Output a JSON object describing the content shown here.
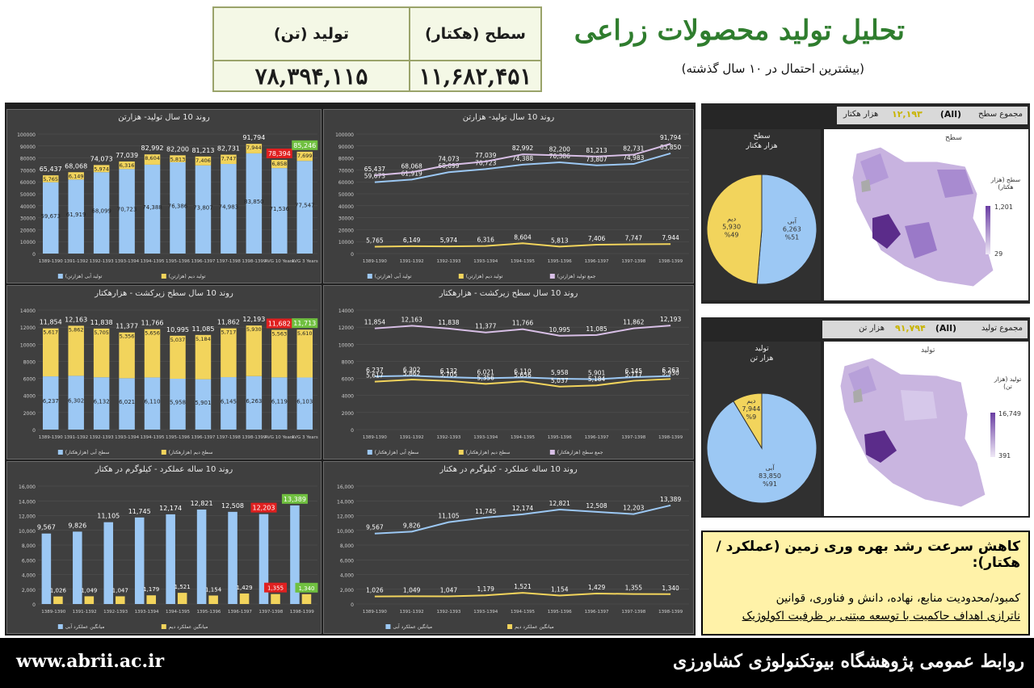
{
  "header": {
    "title": "تحلیل تولید محصولات زراعی",
    "subtitle": "(بیشترین احتمال در ۱۰ سال گذشته)",
    "area_label": "سطح (هکتار)",
    "area_value": "۱۱,۶۸۲,۴۵۱",
    "prod_label": "تولید (تن)",
    "prod_value": "۷۸,۳۹۴,۱۱۵"
  },
  "colors": {
    "irrigated": "#9cc8f4",
    "rainfed": "#f2d45c",
    "total": "#d8bfe6",
    "red_badge": "#e02020",
    "green_badge": "#70c040",
    "background": "#3f3f3f"
  },
  "chart_data": [
    {
      "id": "prod-bars",
      "type": "bar",
      "title": "روند 10 سال تولید- هزارتن",
      "categories": [
        "1389-1390",
        "1391-1392",
        "1392-1393",
        "1393-1394",
        "1394-1395",
        "1395-1396",
        "1396-1397",
        "1397-1398",
        "1398-1399",
        "AVG 10 Years",
        "AVG 3 Years"
      ],
      "ylim": [
        0,
        100000
      ],
      "yticks": [
        "0",
        "10000",
        "20000",
        "30000",
        "40000",
        "50000",
        "60000",
        "70000",
        "80000",
        "90000",
        "100000"
      ],
      "series": [
        {
          "name": "تولید آبی (هزارتن)",
          "values": [
            59673,
            61919,
            68099,
            70723,
            74388,
            76386,
            73807,
            74983,
            83850,
            71536,
            77547
          ],
          "labels": [
            "59,673",
            "61,919",
            "68,099",
            "70,723",
            "74,388",
            "76,386",
            "73,807",
            "74,983",
            "83,850",
            "71,536",
            "77,547"
          ]
        },
        {
          "name": "تولید دیم (هزارتن)",
          "values": [
            5765,
            6149,
            5974,
            6316,
            8604,
            5813,
            7406,
            7747,
            7944,
            6858,
            7699
          ],
          "labels": [
            "5,765",
            "6,149",
            "5,974",
            "6,316",
            "8,604",
            "5,813",
            "7,406",
            "7,747",
            "7,944",
            "6,858",
            "7,699"
          ]
        }
      ],
      "totals": [
        "65,437",
        "68,068",
        "74,073",
        "77,039",
        "82,992",
        "82,200",
        "81,213",
        "82,731",
        "91,794",
        "78,394",
        "85,246"
      ]
    },
    {
      "id": "prod-lines",
      "type": "line",
      "title": "روند 10 سال تولید- هزارتن",
      "categories": [
        "1389-1390",
        "1391-1392",
        "1392-1393",
        "1393-1394",
        "1394-1395",
        "1395-1396",
        "1396-1397",
        "1397-1398",
        "1398-1399"
      ],
      "ylim": [
        0,
        100000
      ],
      "yticks": [
        "0",
        "10000",
        "20000",
        "30000",
        "40000",
        "50000",
        "60000",
        "70000",
        "80000",
        "90000",
        "100000"
      ],
      "series": [
        {
          "name": "تولید آبی (هزارتن)",
          "values": [
            59673,
            61919,
            68099,
            70723,
            74388,
            76386,
            73807,
            74983,
            83850
          ],
          "labels": [
            "59,673",
            "61,919",
            "68,099",
            "70,723",
            "74,388",
            "76,386",
            "73,807",
            "74,983",
            "83,850"
          ]
        },
        {
          "name": "تولید دیم (هزارتن)",
          "values": [
            5765,
            6149,
            5974,
            6316,
            8604,
            5813,
            7406,
            7747,
            7944
          ],
          "labels": [
            "5,765",
            "6,149",
            "5,974",
            "6,316",
            "8,604",
            "5,813",
            "7,406",
            "7,747",
            "7,944"
          ]
        },
        {
          "name": "جمع تولید (هزارتن)",
          "values": [
            65437,
            68068,
            74073,
            77039,
            82992,
            82200,
            81213,
            82731,
            91794
          ],
          "labels": [
            "65,437",
            "68,068",
            "74,073",
            "77,039",
            "82,992",
            "82,200",
            "81,213",
            "82,731",
            "91,794"
          ]
        }
      ]
    },
    {
      "id": "area-bars",
      "type": "bar",
      "title": "روند 10 سال سطح زیرکشت - هزارهکتار",
      "categories": [
        "1389-1390",
        "1391-1392",
        "1392-1393",
        "1393-1394",
        "1394-1395",
        "1395-1396",
        "1396-1397",
        "1397-1398",
        "1398-1399",
        "AVG 10 Years",
        "AVG 3 Years"
      ],
      "ylim": [
        0,
        14000
      ],
      "yticks": [
        "0",
        "2000",
        "4000",
        "6000",
        "8000",
        "10000",
        "12000",
        "14000"
      ],
      "series": [
        {
          "name": "سطح آبی (هزارهکتار)",
          "values": [
            6237,
            6302,
            6132,
            6021,
            6110,
            5958,
            5901,
            6145,
            6263,
            6119,
            6103
          ],
          "labels": [
            "6,237",
            "6,302",
            "6,132",
            "6,021",
            "6,110",
            "5,958",
            "5,901",
            "6,145",
            "6,263",
            "6,119",
            "6,103"
          ]
        },
        {
          "name": "سطح دیم (هزارهکتار)",
          "values": [
            5617,
            5862,
            5705,
            5356,
            5656,
            5037,
            5184,
            5717,
            5930,
            5563,
            5610
          ],
          "labels": [
            "5,617",
            "5,862",
            "5,705",
            "5,356",
            "5,656",
            "5,037",
            "5,184",
            "5,717",
            "5,930",
            "5,563",
            "5,610"
          ]
        }
      ],
      "totals": [
        "11,854",
        "12,163",
        "11,838",
        "11,377",
        "11,766",
        "10,995",
        "11,085",
        "11,862",
        "12,193",
        "11,682",
        "11,713"
      ]
    },
    {
      "id": "area-lines",
      "type": "line",
      "title": "روند 10 سال سطح زیرکشت - هزارهکتار",
      "categories": [
        "1389-1390",
        "1391-1392",
        "1392-1393",
        "1393-1394",
        "1394-1395",
        "1395-1396",
        "1396-1397",
        "1397-1398",
        "1398-1399"
      ],
      "ylim": [
        0,
        14000
      ],
      "yticks": [
        "0",
        "2000",
        "4000",
        "6000",
        "8000",
        "10000",
        "12000",
        "14000"
      ],
      "series": [
        {
          "name": "سطح آبی (هزارهکتار)",
          "values": [
            6237,
            6302,
            6132,
            6021,
            6110,
            5958,
            5901,
            6145,
            6263
          ],
          "labels": [
            "6,237",
            "6,302",
            "6,132",
            "6,021",
            "6,110",
            "5,958",
            "5,901",
            "6,145",
            "6,263"
          ]
        },
        {
          "name": "سطح دیم (هزارهکتار)",
          "values": [
            5617,
            5862,
            5705,
            5356,
            5656,
            5037,
            5184,
            5717,
            5930
          ],
          "labels": [
            "5,617",
            "5,862",
            "5,705",
            "5,356",
            "5,656",
            "5,037",
            "5,184",
            "5,717",
            "5,930"
          ]
        },
        {
          "name": "جمع سطح (هزارهکتار)",
          "values": [
            11854,
            12163,
            11838,
            11377,
            11766,
            10995,
            11085,
            11862,
            12193
          ],
          "labels": [
            "11,854",
            "12,163",
            "11,838",
            "11,377",
            "11,766",
            "10,995",
            "11,085",
            "11,862",
            "12,193"
          ]
        }
      ]
    },
    {
      "id": "yield-bars",
      "type": "bar",
      "title": "روند 10 ساله عملکرد - کیلوگرم در هکتار",
      "categories": [
        "1389-1390",
        "1391-1392",
        "1392-1393",
        "1393-1394",
        "1394-1395",
        "1395-1396",
        "1396-1397",
        "1397-1398",
        "1398-1399"
      ],
      "ylim": [
        0,
        16000
      ],
      "yticks": [
        "0",
        "2,000",
        "4,000",
        "6,000",
        "8,000",
        "10,000",
        "12,000",
        "14,000",
        "16,000"
      ],
      "series": [
        {
          "name": "میانگین عملکرد آبی",
          "values": [
            9567,
            9826,
            11105,
            11745,
            12174,
            12821,
            12508,
            12203,
            13389
          ],
          "labels": [
            "9,567",
            "9,826",
            "11,105",
            "11,745",
            "12,174",
            "12,821",
            "12,508",
            "12,203",
            "13,389"
          ]
        },
        {
          "name": "میانگین عملکرد دیم",
          "values": [
            1026,
            1049,
            1047,
            1179,
            1521,
            1154,
            1429,
            1355,
            1340
          ],
          "labels": [
            "1,026",
            "1,049",
            "1,047",
            "1,179",
            "1,521",
            "1,154",
            "1,429",
            "1,355",
            "1,340"
          ]
        }
      ]
    },
    {
      "id": "yield-lines",
      "type": "line",
      "title": "روند 10 ساله عملکرد - کیلوگرم در هکتار",
      "categories": [
        "1389-1390",
        "1391-1392",
        "1392-1393",
        "1393-1394",
        "1394-1395",
        "1395-1396",
        "1396-1397",
        "1397-1398",
        "1398-1399"
      ],
      "ylim": [
        0,
        16000
      ],
      "yticks": [
        "0",
        "2,000",
        "4,000",
        "6,000",
        "8,000",
        "10,000",
        "12,000",
        "14,000",
        "16,000"
      ],
      "series": [
        {
          "name": "میانگین عملکرد آبی",
          "values": [
            9567,
            9826,
            11105,
            11745,
            12174,
            12821,
            12508,
            12203,
            13389
          ],
          "labels": [
            "9,567",
            "9,826",
            "11,105",
            "11,745",
            "12,174",
            "12,821",
            "12,508",
            "12,203",
            "13,389"
          ]
        },
        {
          "name": "میانگین عملکرد دیم",
          "values": [
            1026,
            1049,
            1047,
            1179,
            1521,
            1154,
            1429,
            1355,
            1340
          ],
          "labels": [
            "1,026",
            "1,049",
            "1,047",
            "1,179",
            "1,521",
            "1,154",
            "1,429",
            "1,355",
            "1,340"
          ]
        }
      ]
    },
    {
      "id": "area-pie",
      "type": "pie",
      "title": "سطح",
      "subtitle": "هزار هکتار",
      "slices": [
        {
          "name": "آبی",
          "value": 6263,
          "label": "6,263",
          "pct": "%51"
        },
        {
          "name": "دیم",
          "value": 5930,
          "label": "5,930",
          "pct": "%49"
        }
      ]
    },
    {
      "id": "prod-pie",
      "type": "pie",
      "title": "تولید",
      "subtitle": "هزار تن",
      "slices": [
        {
          "name": "آبی",
          "value": 83850,
          "label": "83,850",
          "pct": "%91"
        },
        {
          "name": "دیم",
          "value": 7944,
          "label": "7,944",
          "pct": "%9"
        }
      ]
    }
  ],
  "filters": {
    "area": {
      "label": "مجموع سطح",
      "all": "(All)",
      "value": "۱۲,۱۹۳",
      "unit": "هزار هکتار",
      "map_title": "سطح",
      "legend_title": "سطح (هزار هکتار)",
      "legend_max": "1,201",
      "legend_min": "29"
    },
    "prod": {
      "label": "مجموع تولید",
      "all": "(All)",
      "value": "۹۱,۷۹۴",
      "unit": "هزار تن",
      "map_title": "تولید",
      "legend_title": "تولید (هزار تن)",
      "legend_max": "16,749",
      "legend_min": "391"
    }
  },
  "callout": {
    "heading": "کاهش سرعت رشد بهره وری زمین (عملکرد /هکتار):",
    "line1": "کمبود/محدودیت منابع، نهاده، دانش و فناوری، قوانین",
    "line2": "ناترازی اهداف حاکمیت با توسعه مبتنی بر ظرفیت اکولوژیک"
  },
  "footer": {
    "url": "www.abrii.ac.ir",
    "org": "روابط عمومی پژوهشگاه بیوتکنولوژی کشاورزی"
  }
}
